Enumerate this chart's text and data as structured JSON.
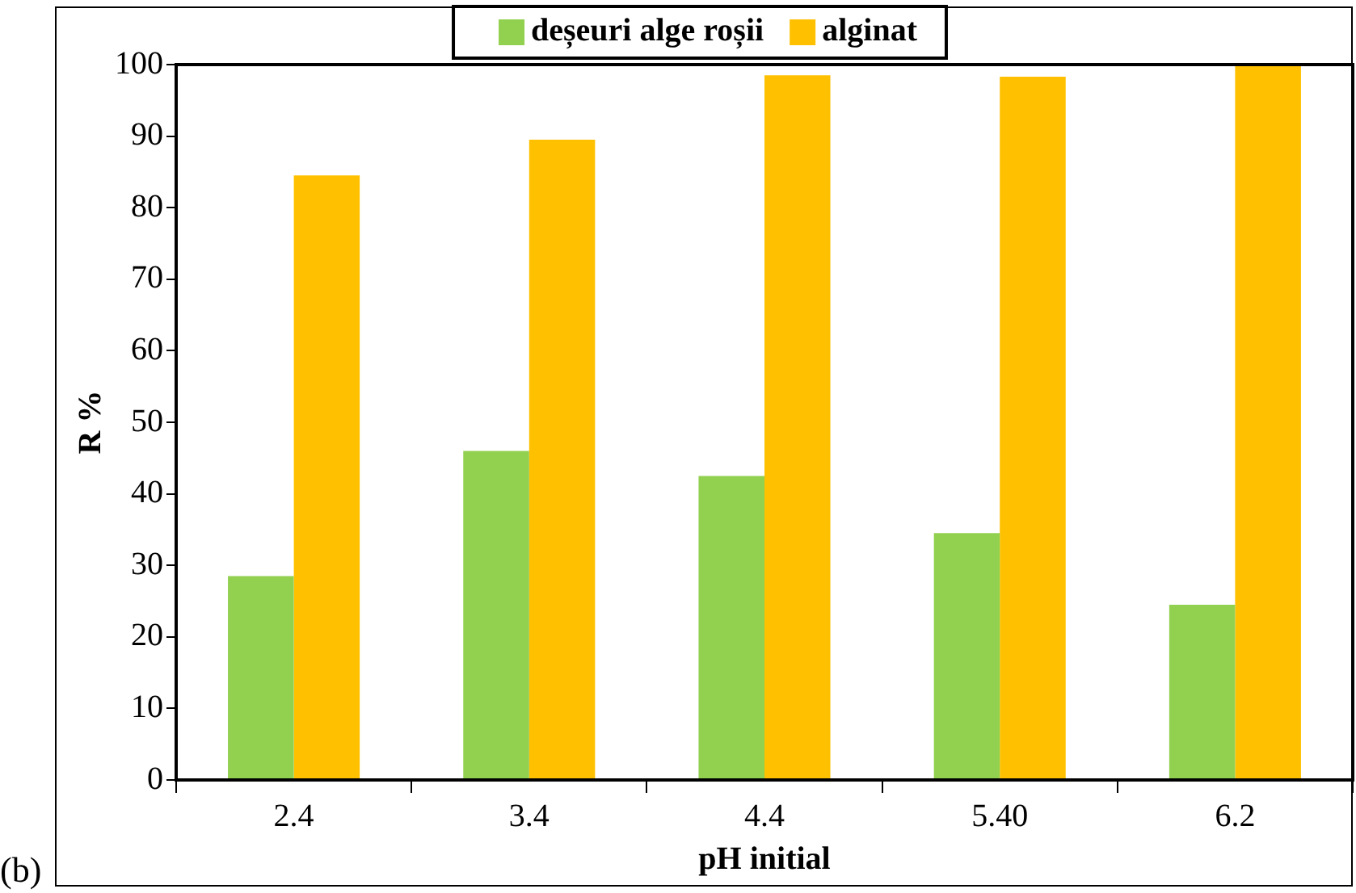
{
  "chart_data": {
    "type": "bar",
    "xlabel": "pH initial",
    "ylabel": "R %",
    "annotations": [
      "(b)"
    ],
    "categories": [
      "2.4",
      "3.4",
      "4.4",
      "5.40",
      "6.2"
    ],
    "series": [
      {
        "name": "deșeuri alge roșii",
        "color": "#92d050",
        "values": [
          28.5,
          46,
          42.5,
          34.5,
          24.5
        ]
      },
      {
        "name": "alginat",
        "color": "#ffc000",
        "values": [
          84.5,
          89.5,
          98.5,
          98.3,
          100
        ]
      }
    ],
    "ylim": [
      0,
      100
    ],
    "yticks": [
      0,
      10,
      20,
      30,
      40,
      50,
      60,
      70,
      80,
      90,
      100
    ],
    "grid": false,
    "legend": "top"
  }
}
